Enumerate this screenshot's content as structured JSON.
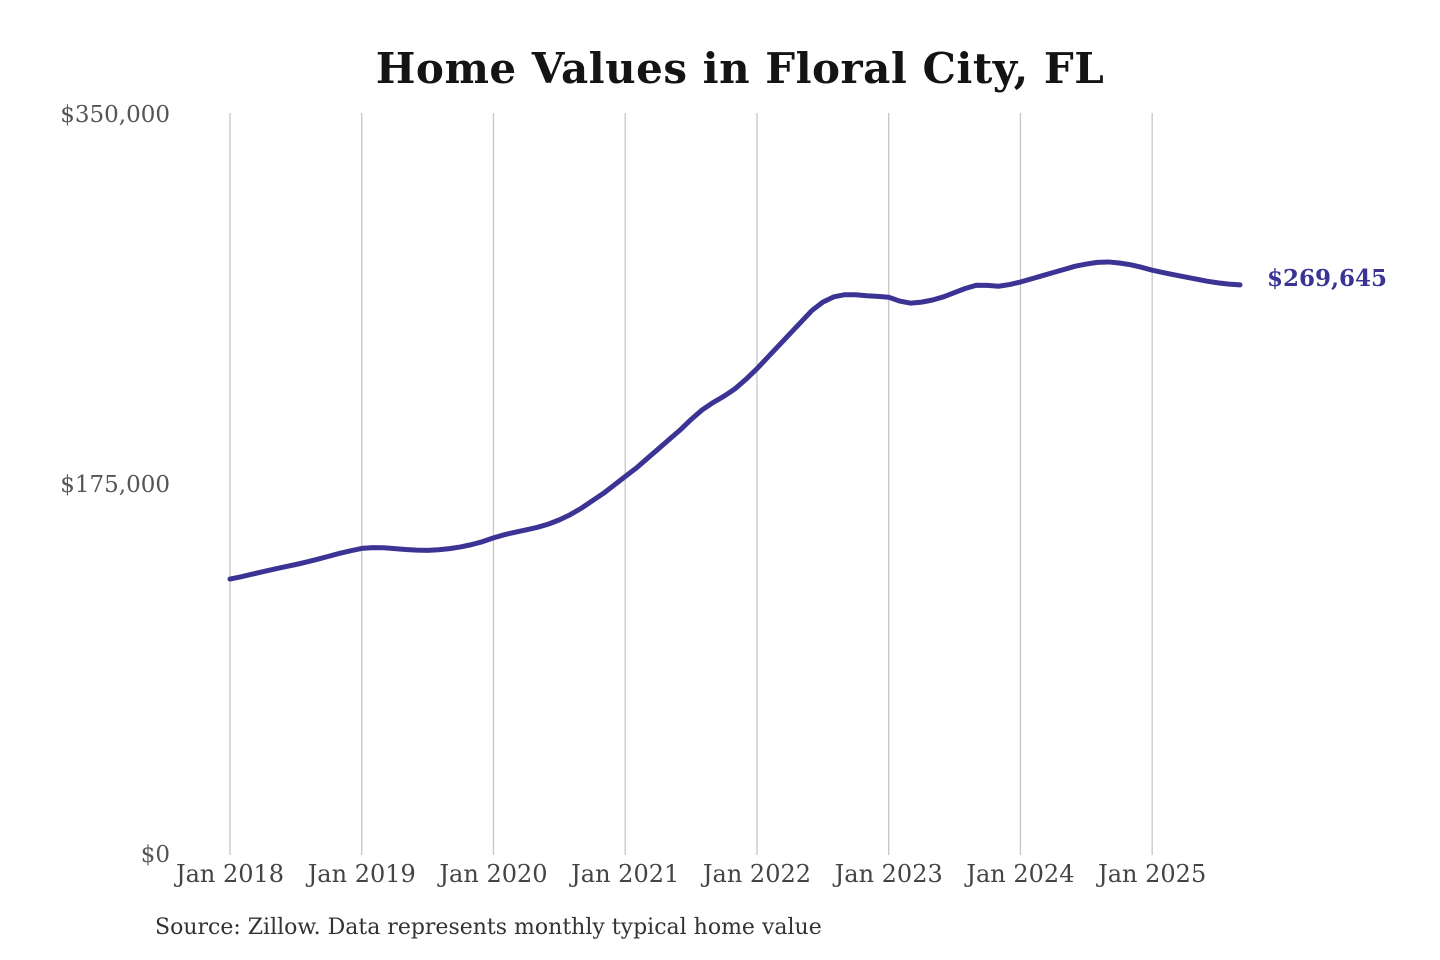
{
  "page": {
    "title": "Home Values in Floral City, FL",
    "source_note": "Source: Zillow. Data represents monthly typical home value",
    "current_value_label": "$269,645"
  },
  "colors": {
    "line": "#3b3494",
    "grid": "#c6c6c6",
    "y_tick_text": "#555555",
    "x_tick_text": "#444444",
    "title_text": "#141414",
    "source_text": "#333333",
    "value_label_text": "#3b3494",
    "background": "#ffffff"
  },
  "chart_data": {
    "type": "line",
    "title": "Home Values in Floral City, FL",
    "xlabel": "",
    "ylabel": "",
    "ylim": [
      0,
      350000
    ],
    "grid": "vertical-only",
    "legend_position": "none",
    "x_unit": "month",
    "x_start_label": "Jan 2018",
    "x_end_label": "Sep 2025",
    "y_ticks": [
      {
        "value": 0,
        "label": "$0"
      },
      {
        "value": 175000,
        "label": "$175,000"
      },
      {
        "value": 350000,
        "label": "$350,000"
      }
    ],
    "x_ticks": [
      {
        "month_index": 0,
        "label": "Jan 2018"
      },
      {
        "month_index": 12,
        "label": "Jan 2019"
      },
      {
        "month_index": 24,
        "label": "Jan 2020"
      },
      {
        "month_index": 36,
        "label": "Jan 2021"
      },
      {
        "month_index": 48,
        "label": "Jan 2022"
      },
      {
        "month_index": 60,
        "label": "Jan 2023"
      },
      {
        "month_index": 72,
        "label": "Jan 2024"
      },
      {
        "month_index": 84,
        "label": "Jan 2025"
      }
    ],
    "end_value": 269645,
    "end_value_label": "$269,645",
    "series": [
      {
        "name": "Monthly typical home value",
        "start": "Jan 2018",
        "interval": "monthly",
        "values": [
          130500,
          131600,
          132800,
          134000,
          135200,
          136300,
          137400,
          138600,
          139900,
          141300,
          142700,
          143900,
          145000,
          145400,
          145300,
          144900,
          144500,
          144200,
          144100,
          144400,
          144900,
          145700,
          146800,
          148200,
          150000,
          151500,
          152700,
          153800,
          155000,
          156500,
          158500,
          161000,
          164000,
          167500,
          171000,
          175000,
          179000,
          183000,
          187500,
          192000,
          196500,
          201000,
          206000,
          210500,
          214000,
          217000,
          220500,
          225000,
          230000,
          235500,
          241000,
          246500,
          252000,
          257500,
          261500,
          264000,
          265000,
          265000,
          264500,
          264200,
          263800,
          262000,
          261000,
          261500,
          262500,
          264000,
          266000,
          268000,
          269500,
          269400,
          269000,
          269800,
          271000,
          272500,
          274000,
          275500,
          277000,
          278500,
          279500,
          280300,
          280500,
          280000,
          279200,
          278000,
          276600,
          275500,
          274400,
          273400,
          272400,
          271400,
          270600,
          270000,
          269645
        ]
      }
    ]
  }
}
